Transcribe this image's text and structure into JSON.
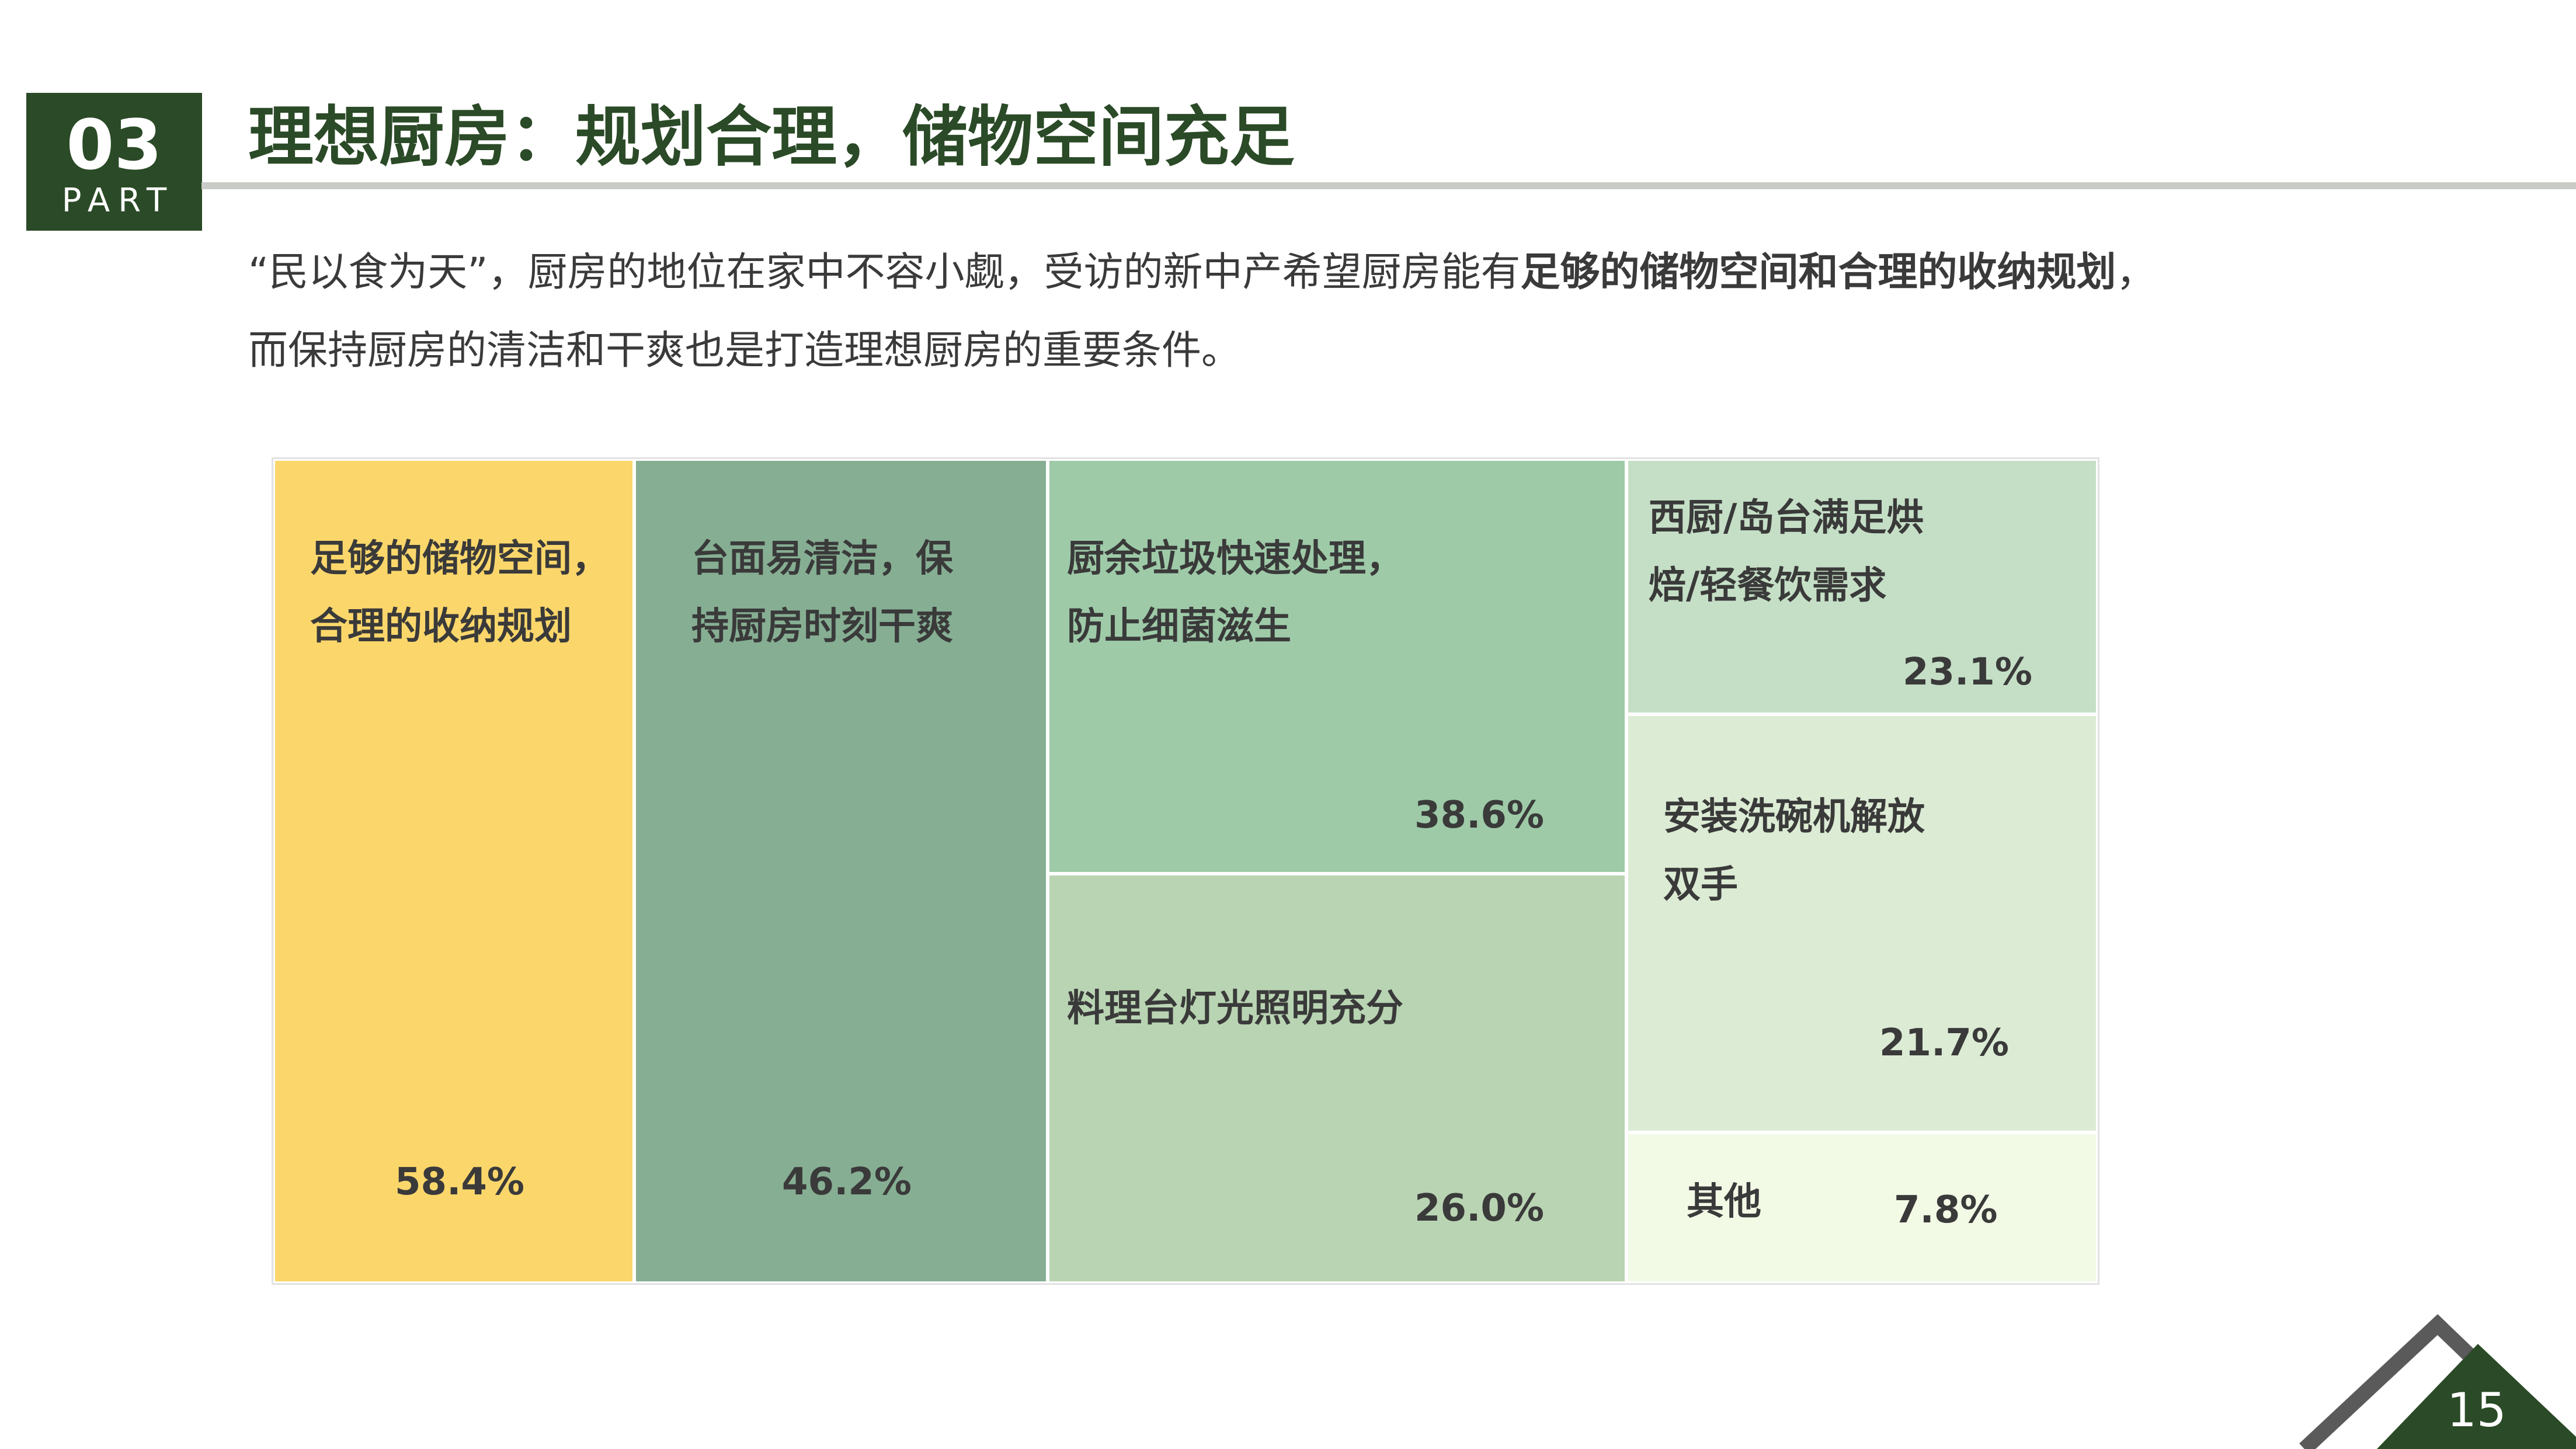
{
  "section": {
    "number": "03",
    "word": "PART"
  },
  "title": "理想厨房：规划合理，储物空间充足",
  "intro": {
    "line1_prefix": "“民以食为天”，厨房的地位在家中不容小觑，受访的新中产希望厨房能有",
    "line1_bold": "足够的储物空间和合理的收纳规划",
    "line1_suffix": "，",
    "line2": "而保持厨房的清洁和干爽也是打造理想厨房的重要条件。"
  },
  "chart_data": {
    "type": "treemap",
    "items": [
      {
        "label": "足够的储物空间，\n合理的收纳规划",
        "value": 58.4,
        "value_text": "58.4%",
        "color": "#fbd76b"
      },
      {
        "label": "台面易清洁，保\n持厨房时刻干爽",
        "value": 46.2,
        "value_text": "46.2%",
        "color": "#86ae93"
      },
      {
        "label": "厨余垃圾快速处理，\n防止细菌滋生",
        "value": 38.6,
        "value_text": "38.6%",
        "color": "#9ecaa8"
      },
      {
        "label": "料理台灯光照明充分",
        "value": 26.0,
        "value_text": "26.0%",
        "color": "#b9d4b3"
      },
      {
        "label": "西厨/岛台满足烘\n焙/轻餐饮需求",
        "value": 23.1,
        "value_text": "23.1%",
        "color": "#c5dfc6"
      },
      {
        "label": "安装洗碗机解放\n双手",
        "value": 21.7,
        "value_text": "21.7%",
        "color": "#dcebd4"
      },
      {
        "label": "其他",
        "value": 7.8,
        "value_text": "7.8%",
        "color": "#f2fae6"
      }
    ]
  },
  "page_number": "15",
  "colors": {
    "brand": "#2b4a27",
    "rule": "#c9ccc6",
    "corner_outline": "#5a5a5a"
  }
}
